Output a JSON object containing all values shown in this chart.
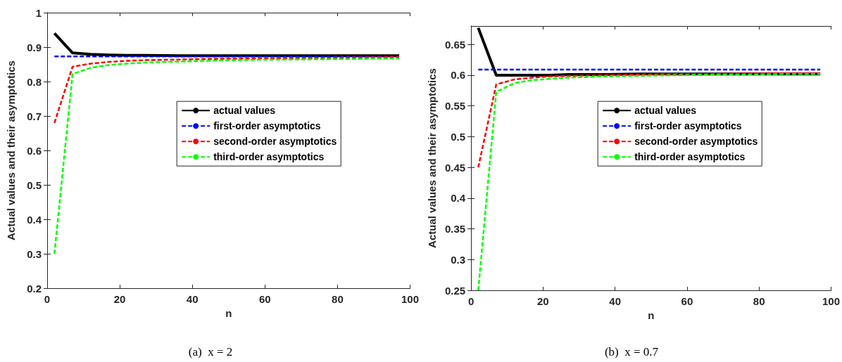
{
  "chart_data": [
    {
      "type": "line",
      "xlabel": "n",
      "ylabel": "Actual values and their asymptotics",
      "annotations": [
        "(a)  x = 2"
      ],
      "x": [
        2,
        7,
        12,
        17,
        22,
        27,
        37,
        47,
        57,
        67,
        77,
        87,
        97
      ],
      "xlim": [
        0,
        100
      ],
      "xticks": [
        0,
        20,
        40,
        60,
        80,
        100
      ],
      "ylim": [
        0.2,
        1
      ],
      "yticks": [
        0.2,
        0.3,
        0.4,
        0.5,
        0.6,
        0.7,
        0.8,
        0.9,
        1
      ],
      "grid": false,
      "legend": "center right",
      "marker": "none",
      "series": [
        {
          "name": "actual values",
          "color": "#000000",
          "line_style": "solid",
          "values": [
            0.94,
            0.883,
            0.879,
            0.877,
            0.876,
            0.876,
            0.875,
            0.875,
            0.875,
            0.875,
            0.875,
            0.875,
            0.875
          ]
        },
        {
          "name": "first-order asymptotics",
          "color": "#0000ff",
          "line_style": "dashed",
          "values": [
            0.873,
            0.873,
            0.873,
            0.873,
            0.873,
            0.873,
            0.873,
            0.873,
            0.873,
            0.873,
            0.873,
            0.873,
            0.873
          ]
        },
        {
          "name": "second-order asymptotics",
          "color": "#ff0000",
          "line_style": "dashed",
          "values": [
            0.68,
            0.843,
            0.852,
            0.857,
            0.86,
            0.862,
            0.864,
            0.866,
            0.867,
            0.868,
            0.869,
            0.87,
            0.871
          ]
        },
        {
          "name": "third-order asymptotics",
          "color": "#00ff00",
          "line_style": "dashed",
          "values": [
            0.3,
            0.822,
            0.84,
            0.848,
            0.852,
            0.855,
            0.858,
            0.861,
            0.863,
            0.864,
            0.865,
            0.866,
            0.867
          ]
        }
      ]
    },
    {
      "type": "line",
      "xlabel": "n",
      "ylabel": "Actual values and their asymptotics",
      "annotations": [
        "(b)  x = 0.7"
      ],
      "x": [
        2,
        7,
        12,
        17,
        22,
        27,
        37,
        47,
        57,
        67,
        77,
        87,
        97
      ],
      "xlim": [
        0,
        100
      ],
      "xticks": [
        0,
        20,
        40,
        60,
        80,
        100
      ],
      "ylim": [
        0.25,
        0.68
      ],
      "yticks": [
        0.25,
        0.3,
        0.35,
        0.4,
        0.45,
        0.5,
        0.55,
        0.6,
        0.65
      ],
      "grid": false,
      "legend": "center right",
      "marker": "none",
      "series": [
        {
          "name": "actual values",
          "color": "#000000",
          "line_style": "solid",
          "values": [
            0.677,
            0.6,
            0.6,
            0.6,
            0.6,
            0.601,
            0.601,
            0.602,
            0.602,
            0.602,
            0.602,
            0.602,
            0.602
          ]
        },
        {
          "name": "first-order asymptotics",
          "color": "#0000ff",
          "line_style": "dashed",
          "values": [
            0.609,
            0.609,
            0.609,
            0.609,
            0.609,
            0.609,
            0.609,
            0.609,
            0.609,
            0.609,
            0.609,
            0.609,
            0.609
          ]
        },
        {
          "name": "second-order asymptotics",
          "color": "#ff0000",
          "line_style": "dashed",
          "values": [
            0.45,
            0.585,
            0.593,
            0.596,
            0.598,
            0.599,
            0.6,
            0.601,
            0.602,
            0.602,
            0.603,
            0.603,
            0.603
          ]
        },
        {
          "name": "third-order asymptotics",
          "color": "#00ff00",
          "line_style": "dashed",
          "values": [
            0.25,
            0.573,
            0.587,
            0.592,
            0.594,
            0.596,
            0.598,
            0.599,
            0.6,
            0.601,
            0.601,
            0.602,
            0.602
          ]
        }
      ]
    }
  ]
}
